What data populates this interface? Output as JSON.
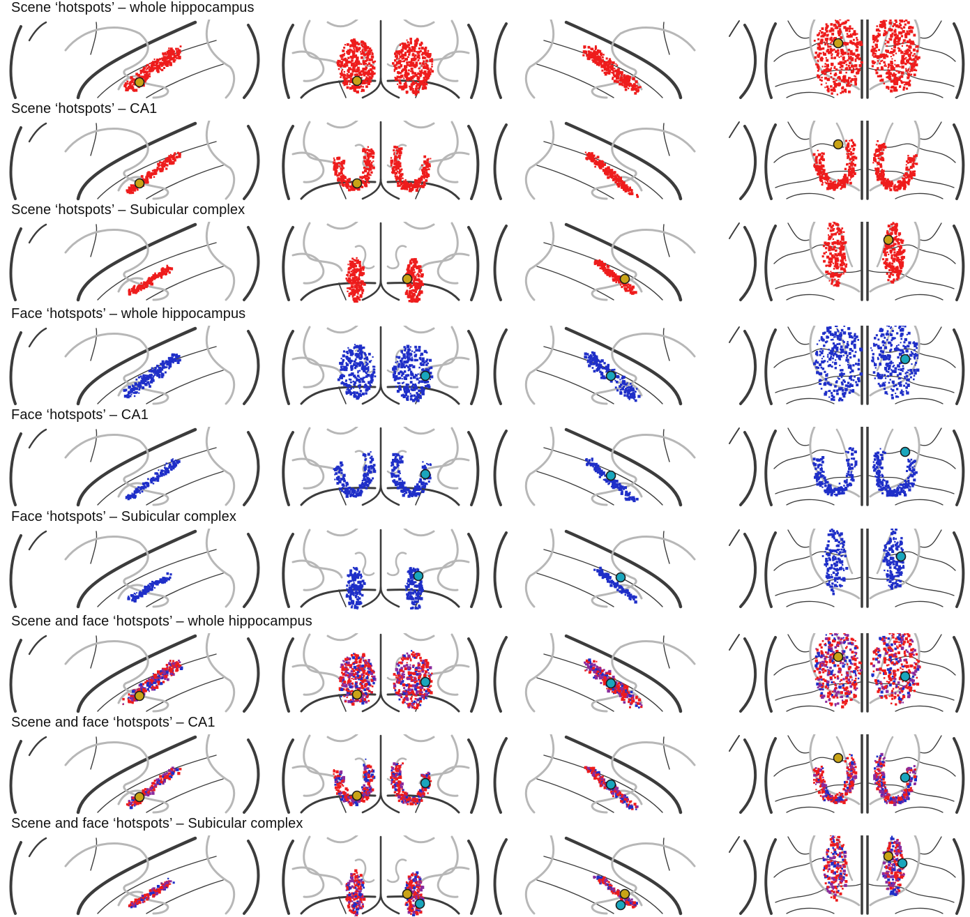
{
  "colors": {
    "scene": "#ee1c1c",
    "face": "#1f2fc8",
    "mixed": "#8a2a9c",
    "scene_peak": "#c9a417",
    "face_peak": "#1aa6bd",
    "outline_dark": "#3c3c3c",
    "outline_light": "#b7b7b7",
    "background": "#ffffff"
  },
  "views": [
    "sagittal-left",
    "axial",
    "sagittal-right",
    "coronal"
  ],
  "rows": [
    {
      "title": "Scene ‘hotspots’ – whole hippocampus",
      "condition": "scene",
      "region": "whole"
    },
    {
      "title": "Scene ‘hotspots’ – CA1",
      "condition": "scene",
      "region": "ca1"
    },
    {
      "title": "Scene ‘hotspots’ – Subicular complex",
      "condition": "scene",
      "region": "subicular"
    },
    {
      "title": "Face ‘hotspots’ – whole hippocampus",
      "condition": "face",
      "region": "whole"
    },
    {
      "title": "Face ‘hotspots’ – CA1",
      "condition": "face",
      "region": "ca1"
    },
    {
      "title": "Face ‘hotspots’ – Subicular complex",
      "condition": "face",
      "region": "subicular"
    },
    {
      "title": "Scene and face ‘hotspots’ – whole hippocampus",
      "condition": "both",
      "region": "whole"
    },
    {
      "title": "Scene and face ‘hotspots’ – CA1",
      "condition": "both",
      "region": "ca1"
    },
    {
      "title": "Scene and face ‘hotspots’ – Subicular complex",
      "condition": "both",
      "region": "subicular"
    }
  ]
}
